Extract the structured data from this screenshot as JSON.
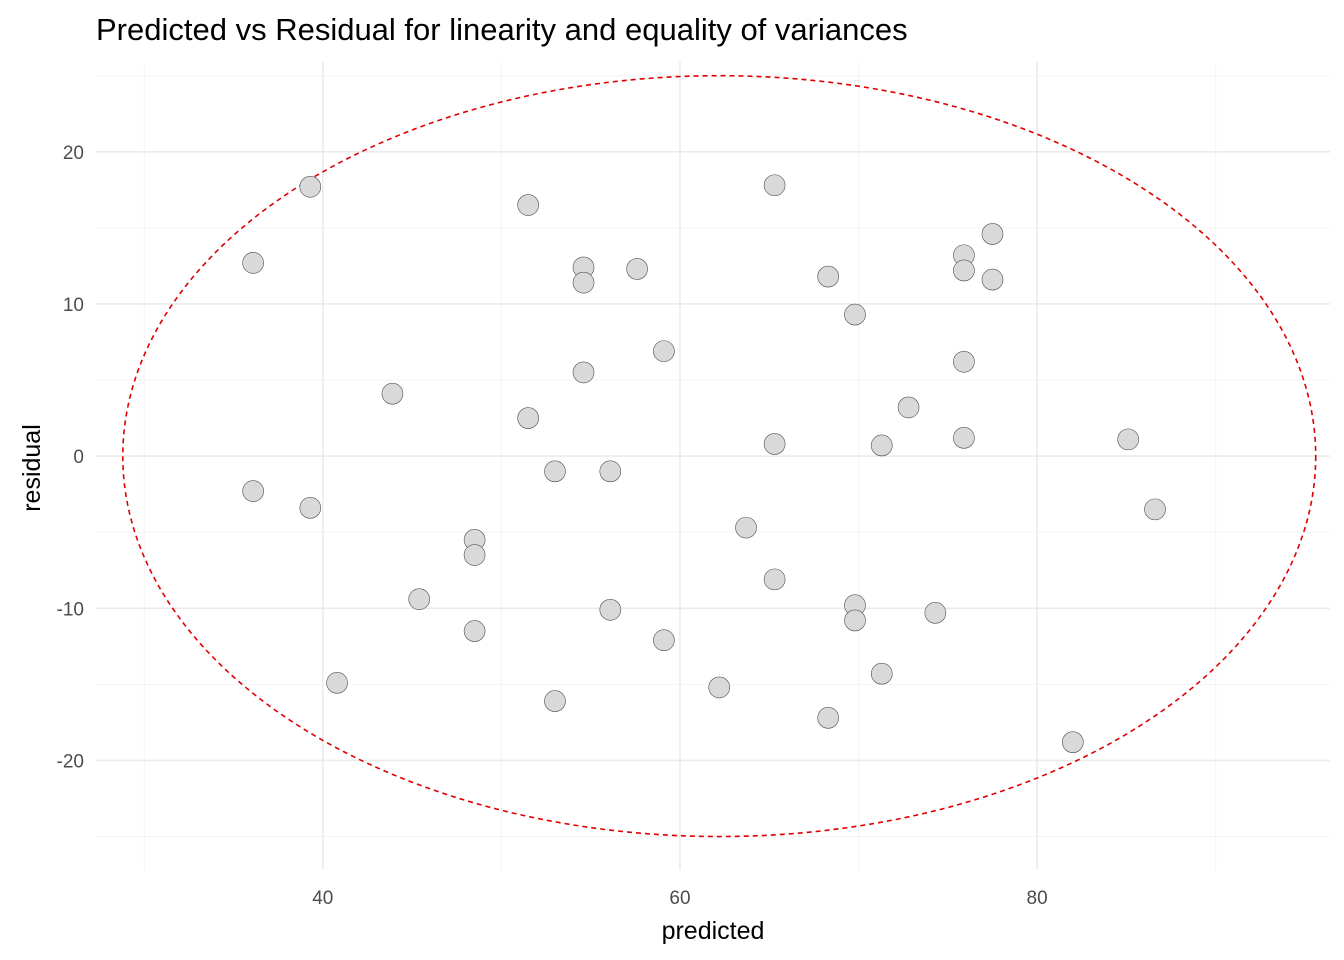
{
  "chart_data": {
    "type": "scatter",
    "title": "Predicted vs Residual for linearity and equality of variances",
    "xlabel": "predicted",
    "ylabel": "residual",
    "xlim": [
      27.3,
      96.4
    ],
    "ylim": [
      -27.2,
      25.9
    ],
    "x_ticks": [
      40,
      60,
      80
    ],
    "x_tick_labels": [
      "40",
      "60",
      "80"
    ],
    "y_ticks": [
      -20,
      -10,
      0,
      10,
      20
    ],
    "y_tick_labels": [
      "-20",
      "-10",
      "0",
      "10",
      "20"
    ],
    "grid": true,
    "point_color": "#d9d9d9",
    "point_outline_color": "#4d4d4d",
    "ellipse": {
      "type": "dashed",
      "color": "#e00000",
      "center": [
        62.2,
        0
      ],
      "x_radius": 33.4,
      "y_radius": 25.0
    },
    "points": [
      {
        "x": 36.1,
        "y": 12.7
      },
      {
        "x": 36.1,
        "y": -2.3
      },
      {
        "x": 39.3,
        "y": 17.7
      },
      {
        "x": 39.3,
        "y": -3.4
      },
      {
        "x": 40.8,
        "y": -14.9
      },
      {
        "x": 43.9,
        "y": 4.1
      },
      {
        "x": 45.4,
        "y": -9.4
      },
      {
        "x": 48.5,
        "y": -5.5
      },
      {
        "x": 48.5,
        "y": -6.5
      },
      {
        "x": 48.5,
        "y": -11.5
      },
      {
        "x": 51.5,
        "y": 16.5
      },
      {
        "x": 51.5,
        "y": 2.5
      },
      {
        "x": 53.0,
        "y": -1.0
      },
      {
        "x": 53.0,
        "y": -16.1
      },
      {
        "x": 54.6,
        "y": 12.4
      },
      {
        "x": 54.6,
        "y": 11.4
      },
      {
        "x": 54.6,
        "y": 5.5
      },
      {
        "x": 56.1,
        "y": -1.0
      },
      {
        "x": 56.1,
        "y": -10.1
      },
      {
        "x": 57.6,
        "y": 12.3
      },
      {
        "x": 59.1,
        "y": 6.9
      },
      {
        "x": 59.1,
        "y": -12.1
      },
      {
        "x": 62.2,
        "y": -15.2
      },
      {
        "x": 63.7,
        "y": -4.7
      },
      {
        "x": 65.3,
        "y": 17.8
      },
      {
        "x": 65.3,
        "y": 0.8
      },
      {
        "x": 65.3,
        "y": -8.1
      },
      {
        "x": 68.3,
        "y": 11.8
      },
      {
        "x": 68.3,
        "y": -17.2
      },
      {
        "x": 69.8,
        "y": 9.3
      },
      {
        "x": 69.8,
        "y": -9.8
      },
      {
        "x": 69.8,
        "y": -10.8
      },
      {
        "x": 71.3,
        "y": 0.7
      },
      {
        "x": 71.3,
        "y": -14.3
      },
      {
        "x": 72.8,
        "y": 3.2
      },
      {
        "x": 74.3,
        "y": -10.3
      },
      {
        "x": 75.9,
        "y": 13.2
      },
      {
        "x": 75.9,
        "y": 12.2
      },
      {
        "x": 75.9,
        "y": 6.2
      },
      {
        "x": 75.9,
        "y": 1.2
      },
      {
        "x": 77.5,
        "y": 14.6
      },
      {
        "x": 77.5,
        "y": 11.6
      },
      {
        "x": 82.0,
        "y": -18.8
      },
      {
        "x": 85.1,
        "y": 1.1
      },
      {
        "x": 86.6,
        "y": -3.5
      }
    ]
  }
}
